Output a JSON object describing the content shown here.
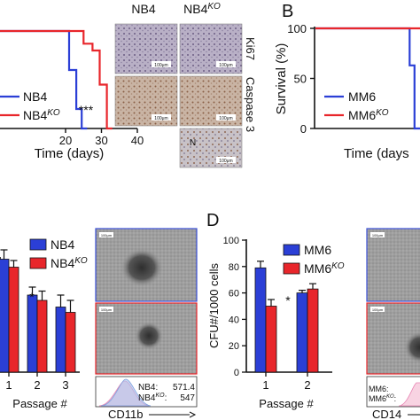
{
  "panels": {
    "A": {
      "legend": [
        {
          "label": "NB4",
          "sup": "",
          "color": "#2b3fd6"
        },
        {
          "label": "NB4",
          "sup": "KO",
          "color": "#e8262b"
        }
      ],
      "significance": "***",
      "micrographs": {
        "col_headers": [
          {
            "label": "NB4",
            "sup": ""
          },
          {
            "label": "NB4",
            "sup": "KO"
          }
        ],
        "row_labels": [
          "Ki67",
          "Caspase 3"
        ],
        "scale_label": "100μm",
        "region_label": "N"
      }
    },
    "B": {
      "letter": "B",
      "legend": [
        {
          "label": "MM6",
          "sup": "",
          "color": "#2b3fd6"
        },
        {
          "label": "MM6",
          "sup": "KO",
          "color": "#e8262b"
        }
      ]
    },
    "C": {
      "legend": [
        {
          "label": "NB4",
          "sup": "",
          "color": "#2b3fd6"
        },
        {
          "label": "NB4",
          "sup": "KO",
          "color": "#e8262b"
        }
      ],
      "significance": "*",
      "flow": {
        "labels": [
          "NB4:",
          "NB4KO:"
        ],
        "label_sups": [
          "",
          "KO"
        ],
        "label_bases": [
          "NB4:",
          "NB4"
        ],
        "values": [
          "571.4",
          "547"
        ],
        "xlabel": "CD11b"
      },
      "scale_label": "100μm"
    },
    "D": {
      "letter": "D",
      "legend": [
        {
          "label": "MM6",
          "sup": "",
          "color": "#2b3fd6"
        },
        {
          "label": "MM6",
          "sup": "KO",
          "color": "#e8262b"
        }
      ],
      "significance": "*",
      "flow": {
        "label_bases": [
          "MM6:",
          "MM6"
        ],
        "label_sups": [
          "",
          "KO"
        ],
        "xlabel": "CD14"
      },
      "scale_label": "100μm"
    }
  },
  "chart_data": [
    {
      "type": "line",
      "panel": "A",
      "xlabel": "Time (days)",
      "ylabel": "",
      "xticks": [
        20,
        30,
        40
      ],
      "xlim": [
        0,
        40
      ],
      "ylim": [
        0,
        100
      ],
      "series": [
        {
          "name": "NB4",
          "color": "#2b3fd6",
          "x": [
            0,
            21,
            21,
            23,
            23,
            24.5,
            24.5,
            26
          ],
          "y": [
            100,
            100,
            60,
            60,
            20,
            20,
            0,
            0
          ]
        },
        {
          "name": "NB4KO",
          "color": "#e8262b",
          "x": [
            0,
            25,
            25,
            27.5,
            27.5,
            29.5,
            29.5,
            31.5,
            31.5,
            33
          ],
          "y": [
            100,
            100,
            87,
            87,
            80,
            80,
            45,
            45,
            0,
            0
          ]
        }
      ]
    },
    {
      "type": "line",
      "panel": "B",
      "xlabel": "Time (days",
      "ylabel": "Survival (%)",
      "yticks": [
        0,
        50,
        100
      ],
      "xlim": [
        0,
        50
      ],
      "ylim": [
        0,
        100
      ],
      "series": [
        {
          "name": "MM6",
          "color": "#2b3fd6",
          "x": [
            0,
            38.5,
            38.5,
            40.5,
            40.5,
            43
          ],
          "y": [
            100,
            100,
            63,
            63,
            0,
            0
          ]
        },
        {
          "name": "MM6KO",
          "color": "#e8262b",
          "x": [
            0,
            43
          ],
          "y": [
            100,
            100
          ]
        }
      ]
    },
    {
      "type": "bar",
      "panel": "C",
      "xlabel": "Passage #",
      "categories": [
        "1",
        "2",
        "3"
      ],
      "ylim": [
        0,
        110
      ],
      "series": [
        {
          "name": "NB4",
          "color": "#2b3fd6",
          "values": [
            85,
            58,
            49
          ],
          "errors": [
            7,
            6,
            9
          ]
        },
        {
          "name": "NB4KO",
          "color": "#e8262b",
          "values": [
            79,
            54,
            45
          ],
          "errors": [
            5,
            7,
            9
          ]
        }
      ]
    },
    {
      "type": "bar",
      "panel": "D",
      "xlabel": "Passage #",
      "ylabel": "CFU#/1000 cells",
      "categories": [
        "1",
        "2"
      ],
      "yticks": [
        0,
        20,
        40,
        60,
        80,
        100
      ],
      "ylim": [
        0,
        100
      ],
      "series": [
        {
          "name": "MM6",
          "color": "#2b3fd6",
          "values": [
            79,
            60
          ],
          "errors": [
            5,
            2
          ]
        },
        {
          "name": "MM6KO",
          "color": "#e8262b",
          "values": [
            50,
            63
          ],
          "errors": [
            5,
            4
          ]
        }
      ]
    }
  ]
}
